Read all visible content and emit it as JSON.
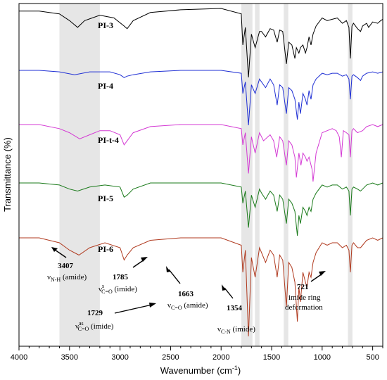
{
  "chart_data": {
    "type": "line",
    "title": "",
    "xlabel": "Wavenumber (cm",
    "xlabel_sup": "-1",
    "xlabel_close": ")",
    "ylabel": "Transmittance (%)",
    "xlim": [
      4000,
      400
    ],
    "x_reversed": true,
    "x_ticks": [
      4000,
      3500,
      3000,
      2500,
      2000,
      1500,
      1000,
      500
    ],
    "y_ticks_shown": false,
    "grid": false,
    "legend": "none",
    "highlight_bands": [
      [
        3600,
        3200
      ],
      [
        1800,
        1690
      ],
      [
        1665,
        1620
      ],
      [
        1380,
        1335
      ],
      [
        745,
        700
      ]
    ],
    "series": [
      {
        "name": "PI-3",
        "color": "#000000",
        "x": [
          4000,
          3800,
          3600,
          3500,
          3420,
          3350,
          3200,
          3060,
          2960,
          2930,
          2870,
          2700,
          2400,
          2000,
          1800,
          1785,
          1760,
          1729,
          1700,
          1663,
          1620,
          1600,
          1560,
          1515,
          1480,
          1445,
          1420,
          1390,
          1354,
          1330,
          1300,
          1270,
          1255,
          1230,
          1215,
          1190,
          1165,
          1150,
          1130,
          1110,
          1090,
          1060,
          1000,
          950,
          900,
          850,
          800,
          760,
          735,
          721,
          705,
          690,
          650,
          620,
          600,
          560,
          540,
          500,
          450,
          420,
          400
        ],
        "y": [
          97,
          97,
          95,
          90,
          85,
          90,
          94,
          92,
          86,
          84,
          90,
          96,
          98,
          99,
          95,
          72,
          85,
          48,
          80,
          70,
          82,
          82,
          78,
          84,
          83,
          74,
          83,
          82,
          58,
          74,
          72,
          62,
          70,
          66,
          70,
          72,
          66,
          70,
          78,
          72,
          80,
          86,
          92,
          90,
          91,
          92,
          88,
          90,
          85,
          62,
          86,
          88,
          84,
          82,
          86,
          88,
          85,
          89,
          88,
          90,
          91
        ]
      },
      {
        "name": "PI-4",
        "color": "#1f2fd4",
        "x": [
          4000,
          3800,
          3600,
          3450,
          3300,
          3100,
          3000,
          2960,
          2930,
          2870,
          2700,
          2400,
          2000,
          1800,
          1785,
          1760,
          1729,
          1700,
          1663,
          1620,
          1600,
          1560,
          1515,
          1480,
          1445,
          1420,
          1390,
          1354,
          1330,
          1300,
          1270,
          1245,
          1230,
          1215,
          1190,
          1165,
          1150,
          1130,
          1110,
          1090,
          1060,
          1000,
          950,
          900,
          850,
          800,
          760,
          735,
          721,
          705,
          690,
          650,
          620,
          600,
          560,
          500,
          450,
          400
        ],
        "y": [
          100,
          100,
          99,
          97,
          99,
          99,
          97,
          95,
          96,
          97,
          99,
          100,
          100,
          98,
          84,
          92,
          62,
          90,
          84,
          94,
          92,
          88,
          94,
          90,
          76,
          90,
          88,
          70,
          88,
          86,
          80,
          66,
          78,
          70,
          84,
          80,
          76,
          86,
          80,
          90,
          94,
          98,
          97,
          98,
          98,
          96,
          97,
          94,
          80,
          96,
          97,
          95,
          93,
          96,
          98,
          99,
          98,
          99
        ]
      },
      {
        "name": "PI-t-4",
        "color": "#d43ad4",
        "x": [
          4000,
          3800,
          3600,
          3500,
          3400,
          3300,
          3200,
          3100,
          3000,
          2960,
          2930,
          2870,
          2700,
          2400,
          2000,
          1800,
          1785,
          1760,
          1729,
          1700,
          1663,
          1620,
          1600,
          1580,
          1515,
          1480,
          1450,
          1420,
          1390,
          1354,
          1330,
          1300,
          1270,
          1255,
          1230,
          1210,
          1190,
          1165,
          1150,
          1130,
          1100,
          1090,
          1060,
          1000,
          950,
          900,
          860,
          830,
          810,
          790,
          760,
          735,
          721,
          705,
          690,
          650,
          600,
          560,
          500,
          450,
          400
        ],
        "y": [
          100,
          100,
          98,
          96,
          93,
          95,
          97,
          97,
          95,
          90,
          92,
          96,
          99,
          100,
          100,
          98,
          90,
          96,
          76,
          94,
          86,
          96,
          94,
          92,
          95,
          92,
          84,
          94,
          92,
          80,
          92,
          90,
          84,
          74,
          86,
          80,
          86,
          84,
          82,
          84,
          78,
          72,
          86,
          96,
          97,
          98,
          97,
          94,
          84,
          97,
          96,
          95,
          84,
          97,
          98,
          96,
          97,
          99,
          100,
          99,
          100
        ]
      },
      {
        "name": "PI-5",
        "color": "#1a7a1a",
        "x": [
          4000,
          3800,
          3600,
          3500,
          3420,
          3300,
          3150,
          3000,
          2960,
          2930,
          2870,
          2700,
          2400,
          2000,
          1800,
          1785,
          1760,
          1729,
          1700,
          1663,
          1620,
          1600,
          1560,
          1515,
          1480,
          1445,
          1420,
          1390,
          1354,
          1330,
          1300,
          1270,
          1245,
          1230,
          1215,
          1190,
          1165,
          1150,
          1130,
          1110,
          1090,
          1060,
          1000,
          950,
          900,
          850,
          800,
          760,
          735,
          721,
          705,
          690,
          650,
          620,
          600,
          560,
          500,
          450,
          400
        ],
        "y": [
          100,
          100,
          99,
          97,
          96,
          98,
          99,
          98,
          93,
          94,
          97,
          100,
          100,
          100,
          98,
          90,
          96,
          78,
          94,
          88,
          97,
          95,
          92,
          96,
          94,
          86,
          94,
          92,
          80,
          92,
          90,
          86,
          74,
          84,
          80,
          88,
          86,
          84,
          88,
          86,
          92,
          95,
          99,
          98,
          99,
          99,
          97,
          98,
          96,
          84,
          97,
          98,
          97,
          96,
          97,
          99,
          100,
          99,
          100
        ]
      },
      {
        "name": "PI-6",
        "color": "#b03a1f",
        "x": [
          4000,
          3800,
          3600,
          3500,
          3407,
          3300,
          3150,
          3000,
          2960,
          2930,
          2870,
          2700,
          2400,
          2000,
          1800,
          1785,
          1760,
          1729,
          1700,
          1663,
          1620,
          1600,
          1560,
          1515,
          1480,
          1445,
          1420,
          1390,
          1354,
          1330,
          1300,
          1270,
          1245,
          1230,
          1215,
          1190,
          1165,
          1150,
          1130,
          1110,
          1090,
          1060,
          1000,
          950,
          900,
          850,
          800,
          760,
          735,
          721,
          705,
          690,
          650,
          620,
          600,
          560,
          500,
          450,
          400
        ],
        "y": [
          100,
          100,
          98,
          95,
          93,
          96,
          98,
          96,
          91,
          93,
          96,
          99,
          100,
          100,
          97,
          86,
          95,
          60,
          92,
          84,
          96,
          94,
          90,
          95,
          93,
          84,
          93,
          91,
          72,
          90,
          88,
          82,
          66,
          80,
          74,
          86,
          82,
          80,
          86,
          84,
          90,
          94,
          98,
          97,
          98,
          98,
          96,
          97,
          95,
          86,
          97,
          98,
          96,
          96,
          97,
          99,
          100,
          99,
          100
        ]
      }
    ],
    "annotations": [
      {
        "number": "3407",
        "mode_main": "ν",
        "mode_sub": "N-H",
        "mode_sup": "",
        "mode_desc": " (amide)"
      },
      {
        "number": "1785",
        "mode_main": "ν",
        "mode_sub": "C=O",
        "mode_sup": "s",
        "mode_desc": " (imide)"
      },
      {
        "number": "1663",
        "mode_main": "ν",
        "mode_sub": "C=O",
        "mode_sup": "",
        "mode_desc": " (amide)"
      },
      {
        "number": "1729",
        "mode_main": "ν",
        "mode_sub": "C=O",
        "mode_sup": "as",
        "mode_desc": " (imide)"
      },
      {
        "number": "1354",
        "mode_main": "ν",
        "mode_sub": "C-N",
        "mode_sup": "",
        "mode_desc": " (imide)"
      },
      {
        "number": "721",
        "mode_main": "imide ring",
        "mode_sub": "",
        "mode_sup": "",
        "mode_desc": "deformation"
      }
    ]
  }
}
